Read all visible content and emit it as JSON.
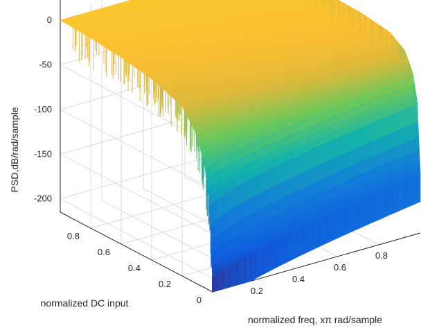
{
  "chart_data": {
    "type": "surface3d",
    "title": "",
    "xlabel": "normalized freq, xπ rad/sample",
    "ylabel": "normalized DC input",
    "zlabel": "PSD,dB/rad/sample",
    "x_range": [
      0,
      1
    ],
    "y_range": [
      0,
      1
    ],
    "z_range": [
      -215,
      35
    ],
    "x_ticks": [
      0.2,
      0.4,
      0.6,
      0.8
    ],
    "x_tick_labels": [
      "0.2",
      "0.4",
      "0.6",
      "0.8"
    ],
    "y_ticks": [
      0,
      0.2,
      0.4,
      0.6,
      0.8
    ],
    "y_tick_labels": [
      "0",
      "0.2",
      "0.4",
      "0.6",
      "0.8"
    ],
    "z_ticks": [
      0,
      -50,
      -100,
      -150,
      -200
    ],
    "z_tick_labels": [
      "0",
      "-50",
      "-100",
      "-150",
      "-200"
    ],
    "grid": true,
    "colormap": "parula",
    "colors": {
      "low": "#0a72d6",
      "mid": "#20b2aa",
      "high": "#f6c52d",
      "top": "#fdbe3e",
      "axis": "#262626",
      "grid": "#dcdcdc"
    },
    "surface_profile": {
      "description_points_dc": [
        0.0,
        0.02,
        0.05,
        0.1,
        0.2,
        0.4,
        0.6,
        0.8,
        1.0
      ],
      "psd_db_at_low_freq": [
        -205,
        -120,
        -80,
        -50,
        -25,
        -12,
        -6,
        -2,
        0
      ],
      "psd_db_at_high_freq": [
        -150,
        -70,
        -40,
        -20,
        -8,
        -3,
        -2,
        -1,
        0
      ]
    }
  }
}
